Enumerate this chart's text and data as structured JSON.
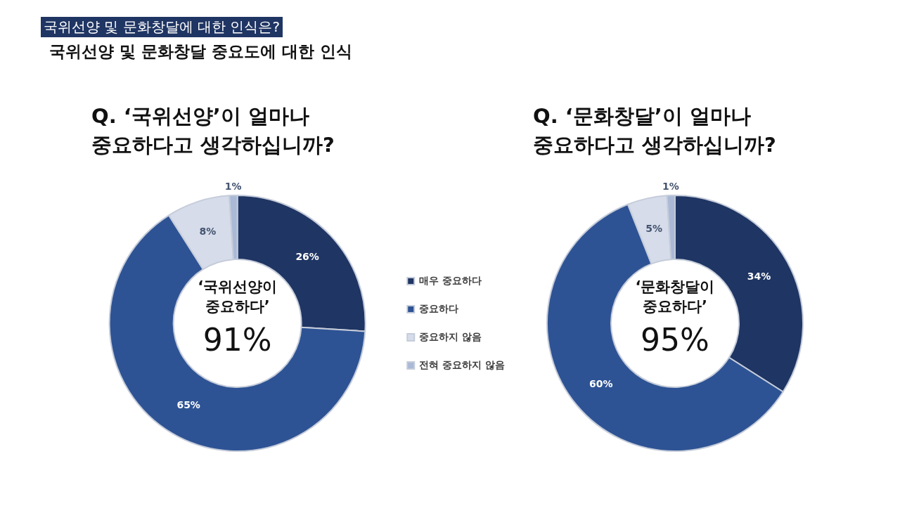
{
  "chart_data": [
    {
      "type": "donut",
      "title": "Q. ‘국위선양’이 얼마나\n중요하다고 생각하십니까?",
      "categories": [
        "매우 중요하다",
        "중요하다",
        "중요하지 않음",
        "전혀 중요하지 않음"
      ],
      "values": [
        26,
        65,
        8,
        1
      ],
      "value_labels": [
        "26%",
        "65%",
        "8%",
        "1%"
      ],
      "colors": [
        "#1f3563",
        "#2e5394",
        "#d6dcea",
        "#a9b9d6"
      ],
      "legend": "right",
      "annotations": [
        "국위선양 및 문화창달에 대한 인식은?",
        "국위선양 및 문화창달 중요도에 대한 인식",
        "‘국위선양이",
        "중요하다’",
        "91%"
      ]
    },
    {
      "type": "donut",
      "title": "Q. ‘문화창달’이 얼마나\n중요하다고 생각하십니까?",
      "values": [
        34,
        60,
        5,
        1
      ],
      "value_labels": [
        "34%",
        "60%",
        "5%",
        "1%"
      ],
      "colors": [
        "#1f3563",
        "#2e5394",
        "#d6dcea",
        "#a9b9d6"
      ],
      "annotations": [
        "‘문화창달이",
        "중요하다’",
        "95%"
      ]
    }
  ]
}
